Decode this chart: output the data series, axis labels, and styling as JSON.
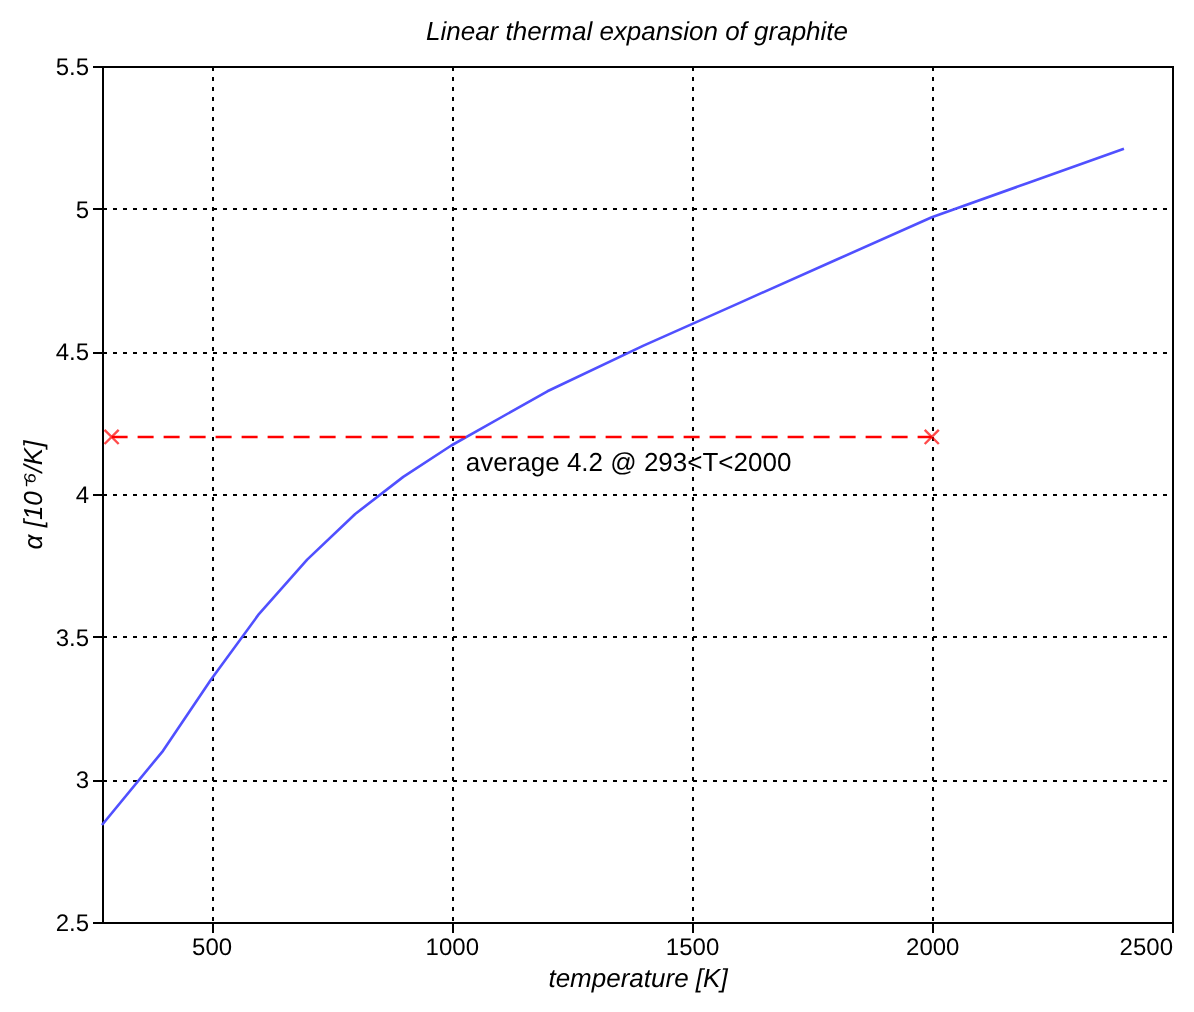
{
  "chart_data": {
    "type": "line",
    "title": "Linear thermal expansion of graphite",
    "xlabel": "temperature [K]",
    "ylabel": "α [10⁻⁶/K]",
    "xlim": [
      273,
      2500
    ],
    "ylim": [
      2.5,
      5.5
    ],
    "xticks": [
      500,
      1000,
      1500,
      2000,
      2500
    ],
    "yticks": [
      2.5,
      3,
      3.5,
      4,
      4.5,
      5,
      5.5
    ],
    "grid": true,
    "series": [
      {
        "color": "#5050ff",
        "marker": "none",
        "line_style": "solid",
        "x": [
          273,
          400,
          500,
          600,
          700,
          800,
          900,
          1000,
          1200,
          1400,
          1600,
          1800,
          2000,
          2200,
          2400
        ],
        "values": [
          2.84,
          3.1,
          3.35,
          3.58,
          3.77,
          3.93,
          4.06,
          4.17,
          4.36,
          4.52,
          4.67,
          4.82,
          4.97,
          5.09,
          5.21
        ]
      },
      {
        "color": "#ff0000",
        "marker": "cross",
        "line_style": "dashed",
        "x": [
          293,
          2000
        ],
        "values": [
          4.2,
          4.2
        ]
      }
    ],
    "annotations": [
      {
        "text": "average 4.2 @ 293<T<2000",
        "x": 1030,
        "y": 4.2
      }
    ]
  }
}
